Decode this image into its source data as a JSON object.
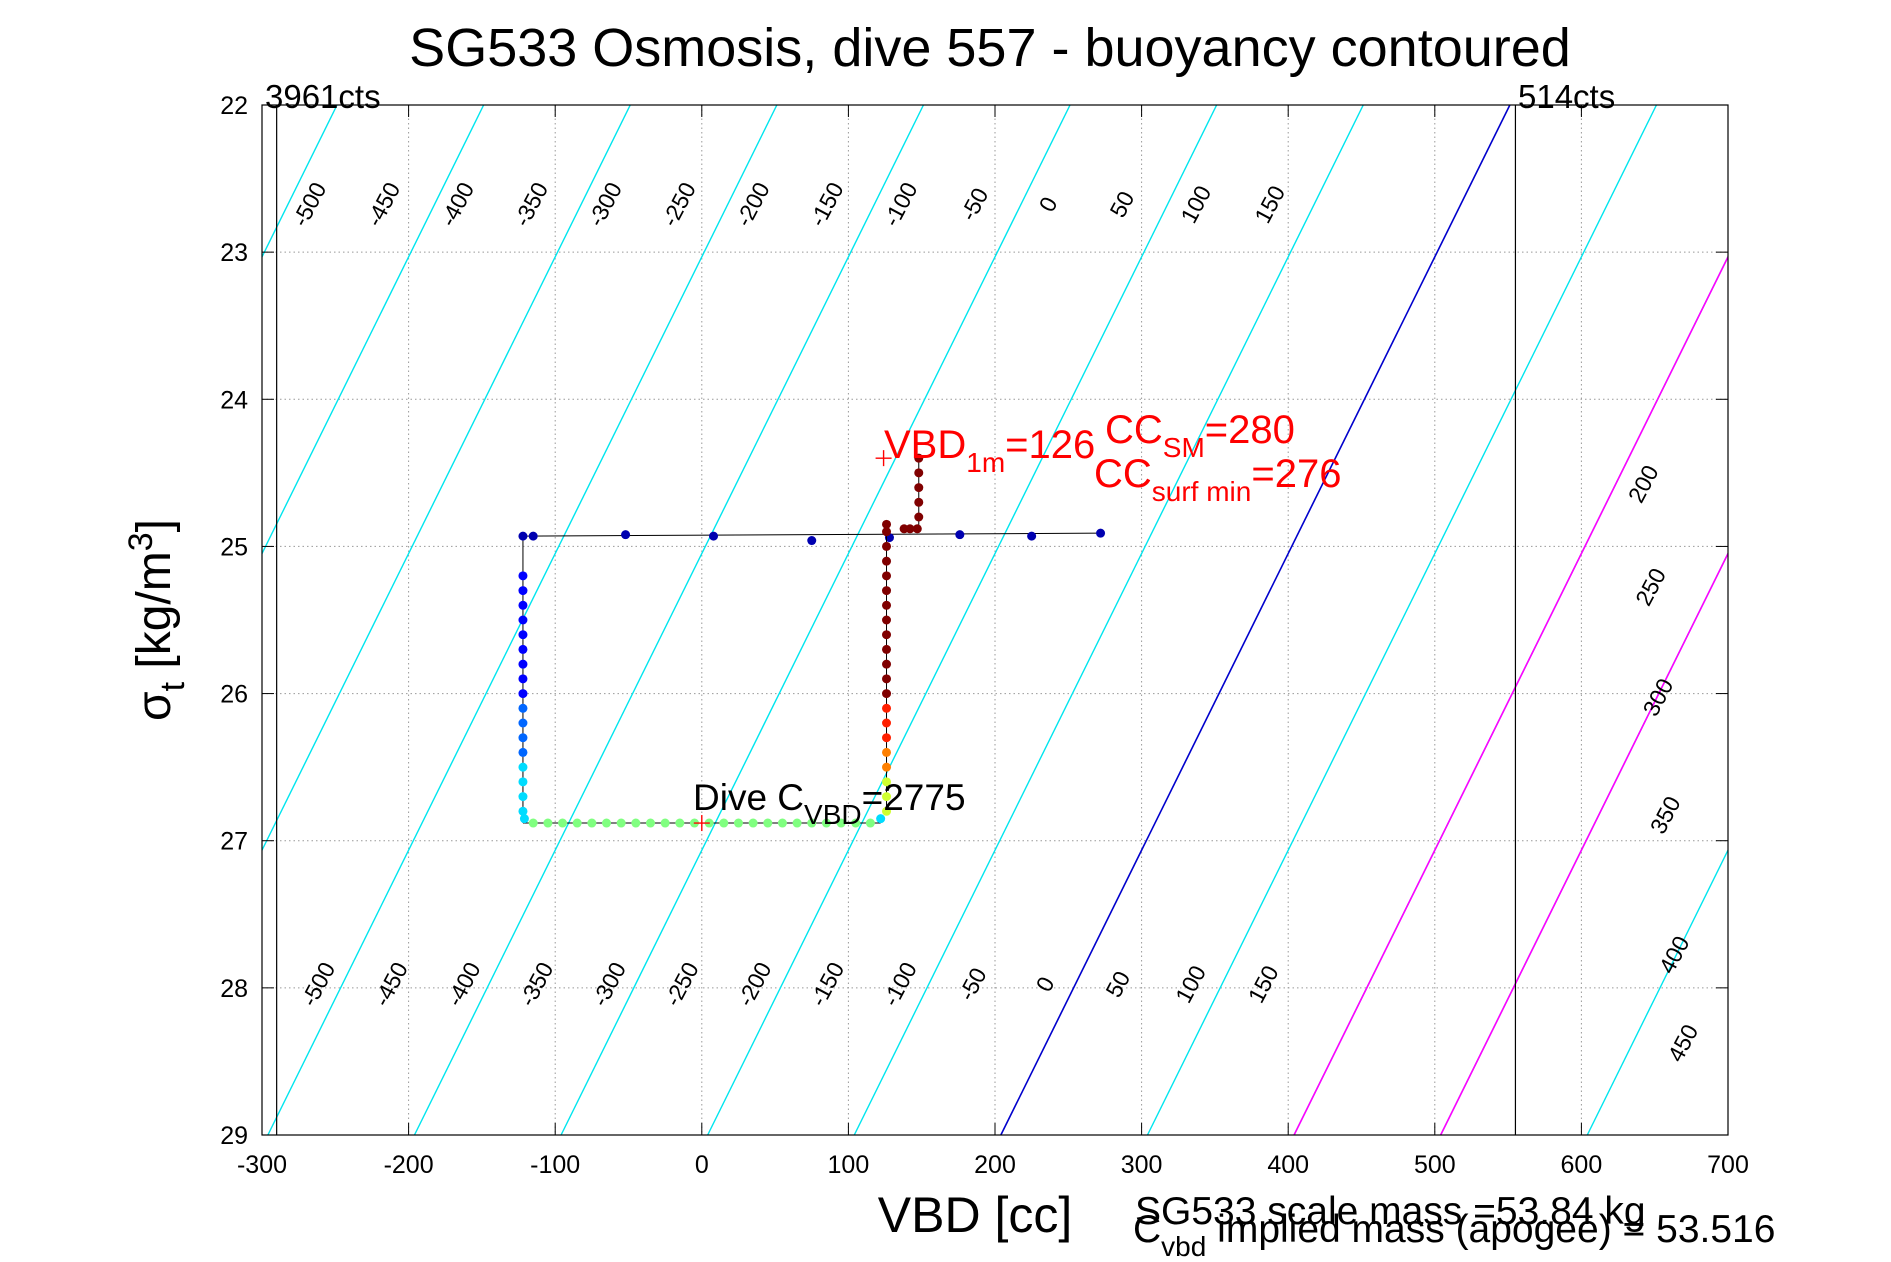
{
  "chart_data": {
    "type": "scatter",
    "title": "SG533 Osmosis, dive 557 - buoyancy contoured",
    "xlabel": "VBD [cc]",
    "ylabel": "σt [kg/m3]",
    "ylabel_main": "σ",
    "ylabel_sub": "t",
    "ylabel_rest": " [kg/m",
    "ylabel_sup": "3",
    "ylabel_close": "]",
    "xlim": [
      -300,
      700
    ],
    "ylim": [
      22,
      29
    ],
    "y_reversed": true,
    "grid": true,
    "xticks": [
      -300,
      -200,
      -100,
      0,
      100,
      200,
      300,
      400,
      500,
      600,
      700
    ],
    "yticks": [
      22,
      23,
      24,
      25,
      26,
      27,
      28,
      29
    ],
    "contour_levels": [
      -500,
      -450,
      -400,
      -350,
      -300,
      -250,
      -200,
      -150,
      -100,
      -50,
      0,
      50,
      100,
      150,
      200,
      250,
      300,
      350,
      400,
      450
    ],
    "contour_labels_top": [
      "-500",
      "-450",
      "-400",
      "-350",
      "-300",
      "-250",
      "-200",
      "-150",
      "-100",
      "-50",
      "0",
      "50",
      "100",
      "150"
    ],
    "contour_labels_bottom": [
      "-500",
      "-450",
      "-400",
      "-350",
      "-300",
      "-250",
      "-200",
      "-150",
      "-100",
      "-50",
      "0",
      "50",
      "100",
      "150"
    ],
    "contour_labels_right": [
      "200",
      "250",
      "300",
      "350",
      "400",
      "450"
    ],
    "colors": {
      "contour": "#00e5ee",
      "zero_contour": "#0000cc",
      "magenta_lines": "#ff00ff",
      "annotation_red": "#ff0000",
      "axis": "#000000"
    },
    "vertical_lines": [
      {
        "x": -290,
        "label": "3961cts"
      },
      {
        "x": 555,
        "label": "514cts"
      }
    ],
    "magenta_lines_at": [
      100,
      150
    ],
    "descent_trace": {
      "points": [
        [
          -122,
          24.93
        ],
        [
          -115,
          24.93
        ],
        [
          -52,
          24.92
        ],
        [
          8,
          24.93
        ],
        [
          75,
          24.96
        ],
        [
          128,
          24.94
        ],
        [
          176,
          24.92
        ],
        [
          225,
          24.93
        ],
        [
          272,
          24.91
        ],
        [
          -122,
          25.2
        ],
        [
          -122,
          25.3
        ],
        [
          -122,
          25.4
        ],
        [
          -122,
          25.5
        ],
        [
          -122,
          25.6
        ],
        [
          -122,
          25.7
        ],
        [
          -122,
          25.8
        ],
        [
          -122,
          25.9
        ],
        [
          -122,
          26.0
        ],
        [
          -122,
          26.1
        ],
        [
          -122,
          26.2
        ],
        [
          -122,
          26.3
        ],
        [
          -122,
          26.4
        ],
        [
          -122,
          26.5
        ],
        [
          -122,
          26.6
        ],
        [
          -122,
          26.7
        ],
        [
          -122,
          26.8
        ],
        [
          -121,
          26.85
        ],
        [
          -115,
          26.88
        ],
        [
          -105,
          26.88
        ],
        [
          -95,
          26.88
        ],
        [
          -85,
          26.88
        ],
        [
          -75,
          26.88
        ],
        [
          -65,
          26.88
        ],
        [
          -55,
          26.88
        ],
        [
          -45,
          26.88
        ],
        [
          -35,
          26.88
        ],
        [
          -25,
          26.88
        ],
        [
          -15,
          26.88
        ],
        [
          -5,
          26.88
        ],
        [
          5,
          26.88
        ],
        [
          15,
          26.88
        ],
        [
          25,
          26.88
        ],
        [
          35,
          26.88
        ],
        [
          45,
          26.88
        ],
        [
          55,
          26.88
        ],
        [
          65,
          26.88
        ],
        [
          75,
          26.88
        ],
        [
          85,
          26.88
        ],
        [
          95,
          26.88
        ],
        [
          105,
          26.88
        ],
        [
          115,
          26.88
        ],
        [
          122,
          26.85
        ]
      ]
    },
    "ascent_trace": {
      "points": [
        [
          126,
          26.8
        ],
        [
          126,
          26.7
        ],
        [
          126,
          26.6
        ],
        [
          126,
          26.5
        ],
        [
          126,
          26.4
        ],
        [
          126,
          26.3
        ],
        [
          126,
          26.2
        ],
        [
          126,
          26.1
        ],
        [
          126,
          26.0
        ],
        [
          126,
          25.9
        ],
        [
          126,
          25.8
        ],
        [
          126,
          25.7
        ],
        [
          126,
          25.6
        ],
        [
          126,
          25.5
        ],
        [
          126,
          25.4
        ],
        [
          126,
          25.3
        ],
        [
          126,
          25.2
        ],
        [
          126,
          25.1
        ],
        [
          126,
          25.0
        ],
        [
          126,
          24.9
        ],
        [
          126,
          24.85
        ],
        [
          138,
          24.88
        ],
        [
          142,
          24.88
        ],
        [
          147,
          24.88
        ],
        [
          148,
          24.8
        ],
        [
          148,
          24.7
        ],
        [
          148,
          24.6
        ],
        [
          148,
          24.5
        ],
        [
          148,
          24.4
        ]
      ]
    },
    "reference_line": {
      "x1": -122,
      "y1": 24.93,
      "x2": 272,
      "y2": 24.91
    },
    "markers": [
      {
        "x": 124,
        "y": 24.4,
        "label": "VBD1m=126"
      },
      {
        "x": 0,
        "y": 26.88,
        "label": "Dive CVBD=2775"
      }
    ],
    "annotations": {
      "vbd_1m_main": "VBD",
      "vbd_1m_sub": "1m",
      "vbd_1m_value": "=126",
      "cc_sm_main": "CC",
      "cc_sm_sub": "SM",
      "cc_sm_value": "=280",
      "cc_surf_main": "CC",
      "cc_surf_sub": "surf min",
      "cc_surf_value": "=276",
      "dive_c_main": "Dive C",
      "dive_c_sub": "VBD",
      "dive_c_value": "=2775",
      "scale_mass": "SG533 scale mass =53.84 kg",
      "implied_main": "C",
      "implied_sub": "vbd",
      "implied_rest": " implied mass (apogee) = 53.516"
    }
  }
}
